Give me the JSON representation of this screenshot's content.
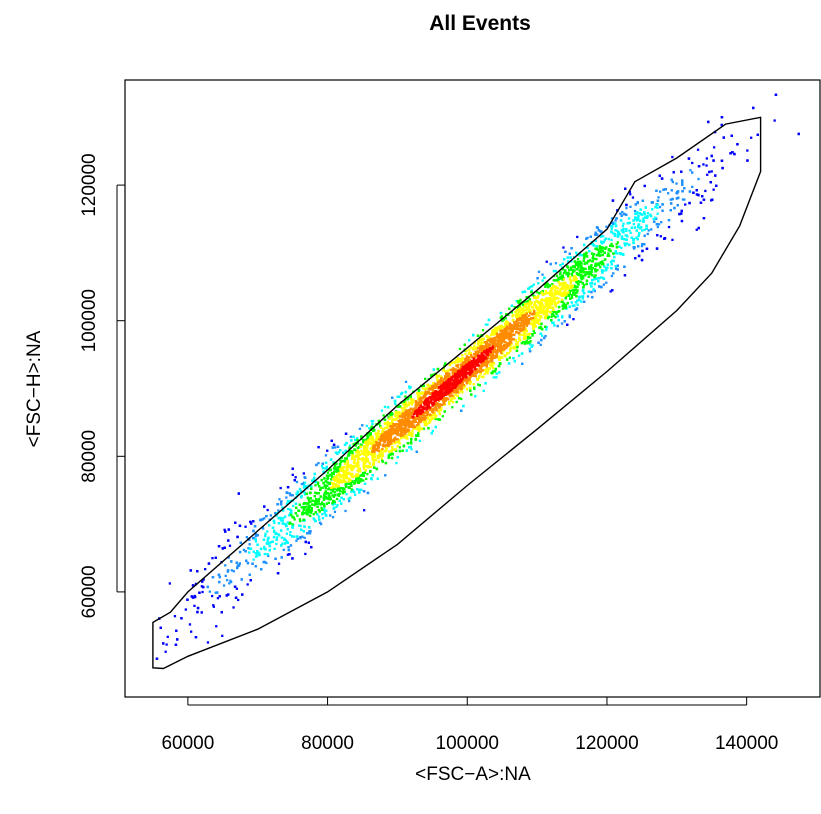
{
  "chart_data": {
    "type": "scatter",
    "title": "All Events",
    "xlabel": "<FSC−A>:NA",
    "ylabel": "<FSC−H>:NA",
    "xlim": [
      51000,
      150500
    ],
    "ylim": [
      44500,
      135500
    ],
    "xticks": [
      60000,
      80000,
      100000,
      120000,
      140000
    ],
    "yticks": [
      60000,
      80000,
      100000,
      120000
    ],
    "xtick_labels": [
      "60000",
      "80000",
      "100000",
      "120000",
      "140000"
    ],
    "ytick_labels": [
      "60000",
      "80000",
      "100000",
      "120000"
    ],
    "grid": false,
    "legend": "none",
    "density": {
      "description_free": true,
      "center": [
        98000,
        91000
      ],
      "relationship": {
        "slope": 0.87,
        "intercept": 5700
      },
      "x_range": [
        55000,
        149000
      ],
      "colormap": [
        "#0000ff",
        "#1e90ff",
        "#00ffff",
        "#00ff00",
        "#ffff00",
        "#ff8c00",
        "#ff0000"
      ]
    },
    "gate_polygon": {
      "x": [
        55000,
        55000,
        57500,
        60000,
        70000,
        80000,
        90000,
        100000,
        110000,
        120000,
        124000,
        130000,
        137000,
        142000,
        142000,
        139000,
        135000,
        130000,
        120000,
        110000,
        100000,
        90000,
        80000,
        70000,
        60000,
        56500,
        55000
      ],
      "y": [
        48800,
        55500,
        57000,
        60000,
        69000,
        78000,
        87500,
        96000,
        104500,
        113500,
        120500,
        124000,
        129000,
        130000,
        122000,
        114000,
        107000,
        101500,
        92500,
        84000,
        75700,
        67000,
        60000,
        54500,
        50500,
        48700,
        48800
      ]
    }
  }
}
